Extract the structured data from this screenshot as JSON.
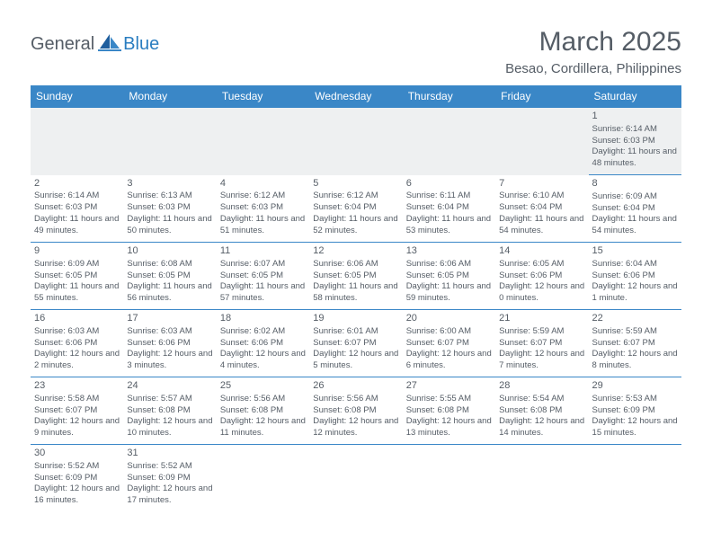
{
  "logo": {
    "general": "General",
    "blue": "Blue"
  },
  "title": "March 2025",
  "location": "Besao, Cordillera, Philippines",
  "colors": {
    "header_bg": "#3a87c7",
    "header_text": "#ffffff",
    "body_text": "#555d66",
    "alt_row_bg": "#eef0f1",
    "rule": "#3a87c7",
    "page_bg": "#ffffff"
  },
  "weekdays": [
    "Sunday",
    "Monday",
    "Tuesday",
    "Wednesday",
    "Thursday",
    "Friday",
    "Saturday"
  ],
  "weeks": [
    [
      null,
      null,
      null,
      null,
      null,
      null,
      {
        "n": "1",
        "sr": "Sunrise: 6:14 AM",
        "ss": "Sunset: 6:03 PM",
        "dl": "Daylight: 11 hours and 48 minutes."
      }
    ],
    [
      {
        "n": "2",
        "sr": "Sunrise: 6:14 AM",
        "ss": "Sunset: 6:03 PM",
        "dl": "Daylight: 11 hours and 49 minutes."
      },
      {
        "n": "3",
        "sr": "Sunrise: 6:13 AM",
        "ss": "Sunset: 6:03 PM",
        "dl": "Daylight: 11 hours and 50 minutes."
      },
      {
        "n": "4",
        "sr": "Sunrise: 6:12 AM",
        "ss": "Sunset: 6:03 PM",
        "dl": "Daylight: 11 hours and 51 minutes."
      },
      {
        "n": "5",
        "sr": "Sunrise: 6:12 AM",
        "ss": "Sunset: 6:04 PM",
        "dl": "Daylight: 11 hours and 52 minutes."
      },
      {
        "n": "6",
        "sr": "Sunrise: 6:11 AM",
        "ss": "Sunset: 6:04 PM",
        "dl": "Daylight: 11 hours and 53 minutes."
      },
      {
        "n": "7",
        "sr": "Sunrise: 6:10 AM",
        "ss": "Sunset: 6:04 PM",
        "dl": "Daylight: 11 hours and 54 minutes."
      },
      {
        "n": "8",
        "sr": "Sunrise: 6:09 AM",
        "ss": "Sunset: 6:04 PM",
        "dl": "Daylight: 11 hours and 54 minutes."
      }
    ],
    [
      {
        "n": "9",
        "sr": "Sunrise: 6:09 AM",
        "ss": "Sunset: 6:05 PM",
        "dl": "Daylight: 11 hours and 55 minutes."
      },
      {
        "n": "10",
        "sr": "Sunrise: 6:08 AM",
        "ss": "Sunset: 6:05 PM",
        "dl": "Daylight: 11 hours and 56 minutes."
      },
      {
        "n": "11",
        "sr": "Sunrise: 6:07 AM",
        "ss": "Sunset: 6:05 PM",
        "dl": "Daylight: 11 hours and 57 minutes."
      },
      {
        "n": "12",
        "sr": "Sunrise: 6:06 AM",
        "ss": "Sunset: 6:05 PM",
        "dl": "Daylight: 11 hours and 58 minutes."
      },
      {
        "n": "13",
        "sr": "Sunrise: 6:06 AM",
        "ss": "Sunset: 6:05 PM",
        "dl": "Daylight: 11 hours and 59 minutes."
      },
      {
        "n": "14",
        "sr": "Sunrise: 6:05 AM",
        "ss": "Sunset: 6:06 PM",
        "dl": "Daylight: 12 hours and 0 minutes."
      },
      {
        "n": "15",
        "sr": "Sunrise: 6:04 AM",
        "ss": "Sunset: 6:06 PM",
        "dl": "Daylight: 12 hours and 1 minute."
      }
    ],
    [
      {
        "n": "16",
        "sr": "Sunrise: 6:03 AM",
        "ss": "Sunset: 6:06 PM",
        "dl": "Daylight: 12 hours and 2 minutes."
      },
      {
        "n": "17",
        "sr": "Sunrise: 6:03 AM",
        "ss": "Sunset: 6:06 PM",
        "dl": "Daylight: 12 hours and 3 minutes."
      },
      {
        "n": "18",
        "sr": "Sunrise: 6:02 AM",
        "ss": "Sunset: 6:06 PM",
        "dl": "Daylight: 12 hours and 4 minutes."
      },
      {
        "n": "19",
        "sr": "Sunrise: 6:01 AM",
        "ss": "Sunset: 6:07 PM",
        "dl": "Daylight: 12 hours and 5 minutes."
      },
      {
        "n": "20",
        "sr": "Sunrise: 6:00 AM",
        "ss": "Sunset: 6:07 PM",
        "dl": "Daylight: 12 hours and 6 minutes."
      },
      {
        "n": "21",
        "sr": "Sunrise: 5:59 AM",
        "ss": "Sunset: 6:07 PM",
        "dl": "Daylight: 12 hours and 7 minutes."
      },
      {
        "n": "22",
        "sr": "Sunrise: 5:59 AM",
        "ss": "Sunset: 6:07 PM",
        "dl": "Daylight: 12 hours and 8 minutes."
      }
    ],
    [
      {
        "n": "23",
        "sr": "Sunrise: 5:58 AM",
        "ss": "Sunset: 6:07 PM",
        "dl": "Daylight: 12 hours and 9 minutes."
      },
      {
        "n": "24",
        "sr": "Sunrise: 5:57 AM",
        "ss": "Sunset: 6:08 PM",
        "dl": "Daylight: 12 hours and 10 minutes."
      },
      {
        "n": "25",
        "sr": "Sunrise: 5:56 AM",
        "ss": "Sunset: 6:08 PM",
        "dl": "Daylight: 12 hours and 11 minutes."
      },
      {
        "n": "26",
        "sr": "Sunrise: 5:56 AM",
        "ss": "Sunset: 6:08 PM",
        "dl": "Daylight: 12 hours and 12 minutes."
      },
      {
        "n": "27",
        "sr": "Sunrise: 5:55 AM",
        "ss": "Sunset: 6:08 PM",
        "dl": "Daylight: 12 hours and 13 minutes."
      },
      {
        "n": "28",
        "sr": "Sunrise: 5:54 AM",
        "ss": "Sunset: 6:08 PM",
        "dl": "Daylight: 12 hours and 14 minutes."
      },
      {
        "n": "29",
        "sr": "Sunrise: 5:53 AM",
        "ss": "Sunset: 6:09 PM",
        "dl": "Daylight: 12 hours and 15 minutes."
      }
    ],
    [
      {
        "n": "30",
        "sr": "Sunrise: 5:52 AM",
        "ss": "Sunset: 6:09 PM",
        "dl": "Daylight: 12 hours and 16 minutes."
      },
      {
        "n": "31",
        "sr": "Sunrise: 5:52 AM",
        "ss": "Sunset: 6:09 PM",
        "dl": "Daylight: 12 hours and 17 minutes."
      },
      null,
      null,
      null,
      null,
      null
    ]
  ]
}
